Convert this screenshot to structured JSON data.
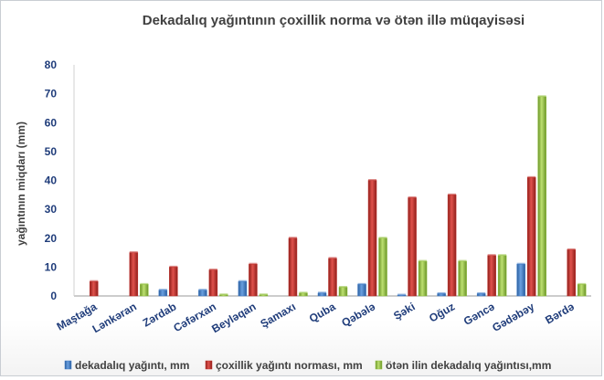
{
  "chart_data": {
    "type": "bar",
    "title": "Dekadalıq yağıntının çoxillik norma  və ötən illə müqayisəsi",
    "ylabel": "yağıntının miqdarı (mm)",
    "xlabel": "",
    "ylim": [
      0,
      80
    ],
    "yticks": [
      0,
      10,
      20,
      30,
      40,
      50,
      60,
      70,
      80
    ],
    "grid": false,
    "legend_position": "bottom",
    "categories": [
      "Maştağa",
      "Lənkəran",
      "Zərdab",
      "Cəfərxan",
      "Beyləqan",
      "Şamaxı",
      "Quba",
      "Qəbələ",
      "Şəki",
      "Oğuz",
      "Gəncə",
      "Gədəbəy",
      "Bərdə"
    ],
    "series": [
      {
        "name": "dekadalıq yağıntı, mm",
        "color": "#3d79c4",
        "values": [
          0,
          0,
          2,
          2,
          5,
          0,
          1,
          4,
          0.3,
          0.8,
          0.8,
          11,
          0
        ]
      },
      {
        "name": "çoxillik yağıntı norması, mm",
        "color": "#c0302b",
        "values": [
          5,
          15,
          10,
          9,
          11,
          20,
          13,
          40,
          34,
          35,
          14,
          41,
          16
        ]
      },
      {
        "name": "ötən ilin dekadalıq yağıntısı,mm",
        "color": "#8fbf3c",
        "values": [
          0,
          4,
          0,
          0.4,
          0.4,
          1,
          3,
          20,
          12,
          12,
          14,
          69,
          4
        ]
      }
    ]
  }
}
